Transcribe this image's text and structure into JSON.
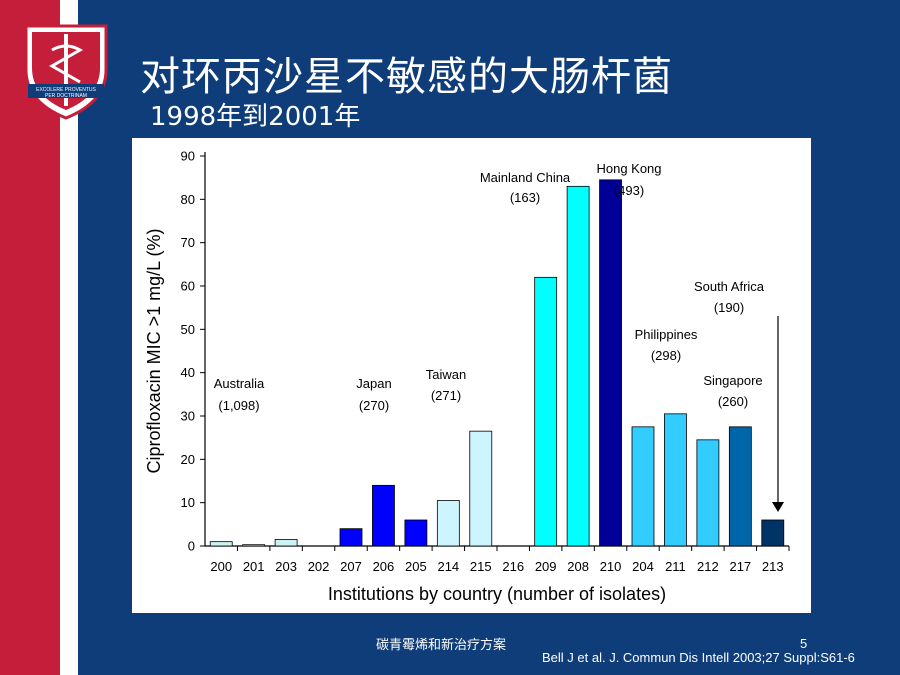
{
  "slide": {
    "title": "对环丙沙星不敏感的大肠杆菌",
    "subtitle": "1998年到2001年",
    "footer_left": "碳青霉烯和新治疗方案",
    "page_number": "5",
    "citation": "Bell J et al. J. Commun Dis Intell 2003;27 Suppl:S61-6",
    "logo_text_line1": "EXCOLERE PROVENTUS",
    "logo_text_line2": "PER DOCTRINAM"
  },
  "colors": {
    "red_stripe": "#c41e3a",
    "background": "#0f3d7a",
    "chart_bg": "#ffffff"
  },
  "chart_data": {
    "type": "bar",
    "xlabel": "Institutions by country (number of isolates)",
    "ylabel": "Ciprofloxacin MIC >1 mg/L (%)",
    "ylim": [
      0,
      90
    ],
    "yticks": [
      0,
      10,
      20,
      30,
      40,
      50,
      60,
      70,
      80,
      90
    ],
    "categories": [
      "200",
      "201",
      "203",
      "202",
      "207",
      "206",
      "205",
      "214",
      "215",
      "216",
      "209",
      "208",
      "210",
      "204",
      "211",
      "212",
      "217",
      "213"
    ],
    "values": [
      1,
      0.3,
      1.5,
      0,
      4,
      14,
      6,
      10.5,
      26.5,
      0,
      62,
      83,
      84.5,
      27.5,
      30.5,
      24.5,
      27.5,
      6
    ],
    "bar_colors": [
      "#ccf3f3",
      "#ccf3f3",
      "#ccf3f3",
      "#ccf3f3",
      "#0000ff",
      "#0000ff",
      "#0000ff",
      "#ccf5ff",
      "#ccf5ff",
      "#00ffff",
      "#00ffff",
      "#00ffff",
      "#000099",
      "#33ccff",
      "#33ccff",
      "#33ccff",
      "#0066aa",
      "#003366"
    ],
    "groups": [
      {
        "name": "Australia",
        "n": "(1,098)"
      },
      {
        "name": "Japan",
        "n": "(270)"
      },
      {
        "name": "Taiwan",
        "n": "(271)"
      },
      {
        "name": "Mainland China",
        "n": "(163)"
      },
      {
        "name": "Hong Kong",
        "n": "(493)"
      },
      {
        "name": "Philippines",
        "n": "(298)"
      },
      {
        "name": "Singapore",
        "n": "(260)"
      },
      {
        "name": "South  Africa",
        "n": "(190)"
      }
    ]
  }
}
